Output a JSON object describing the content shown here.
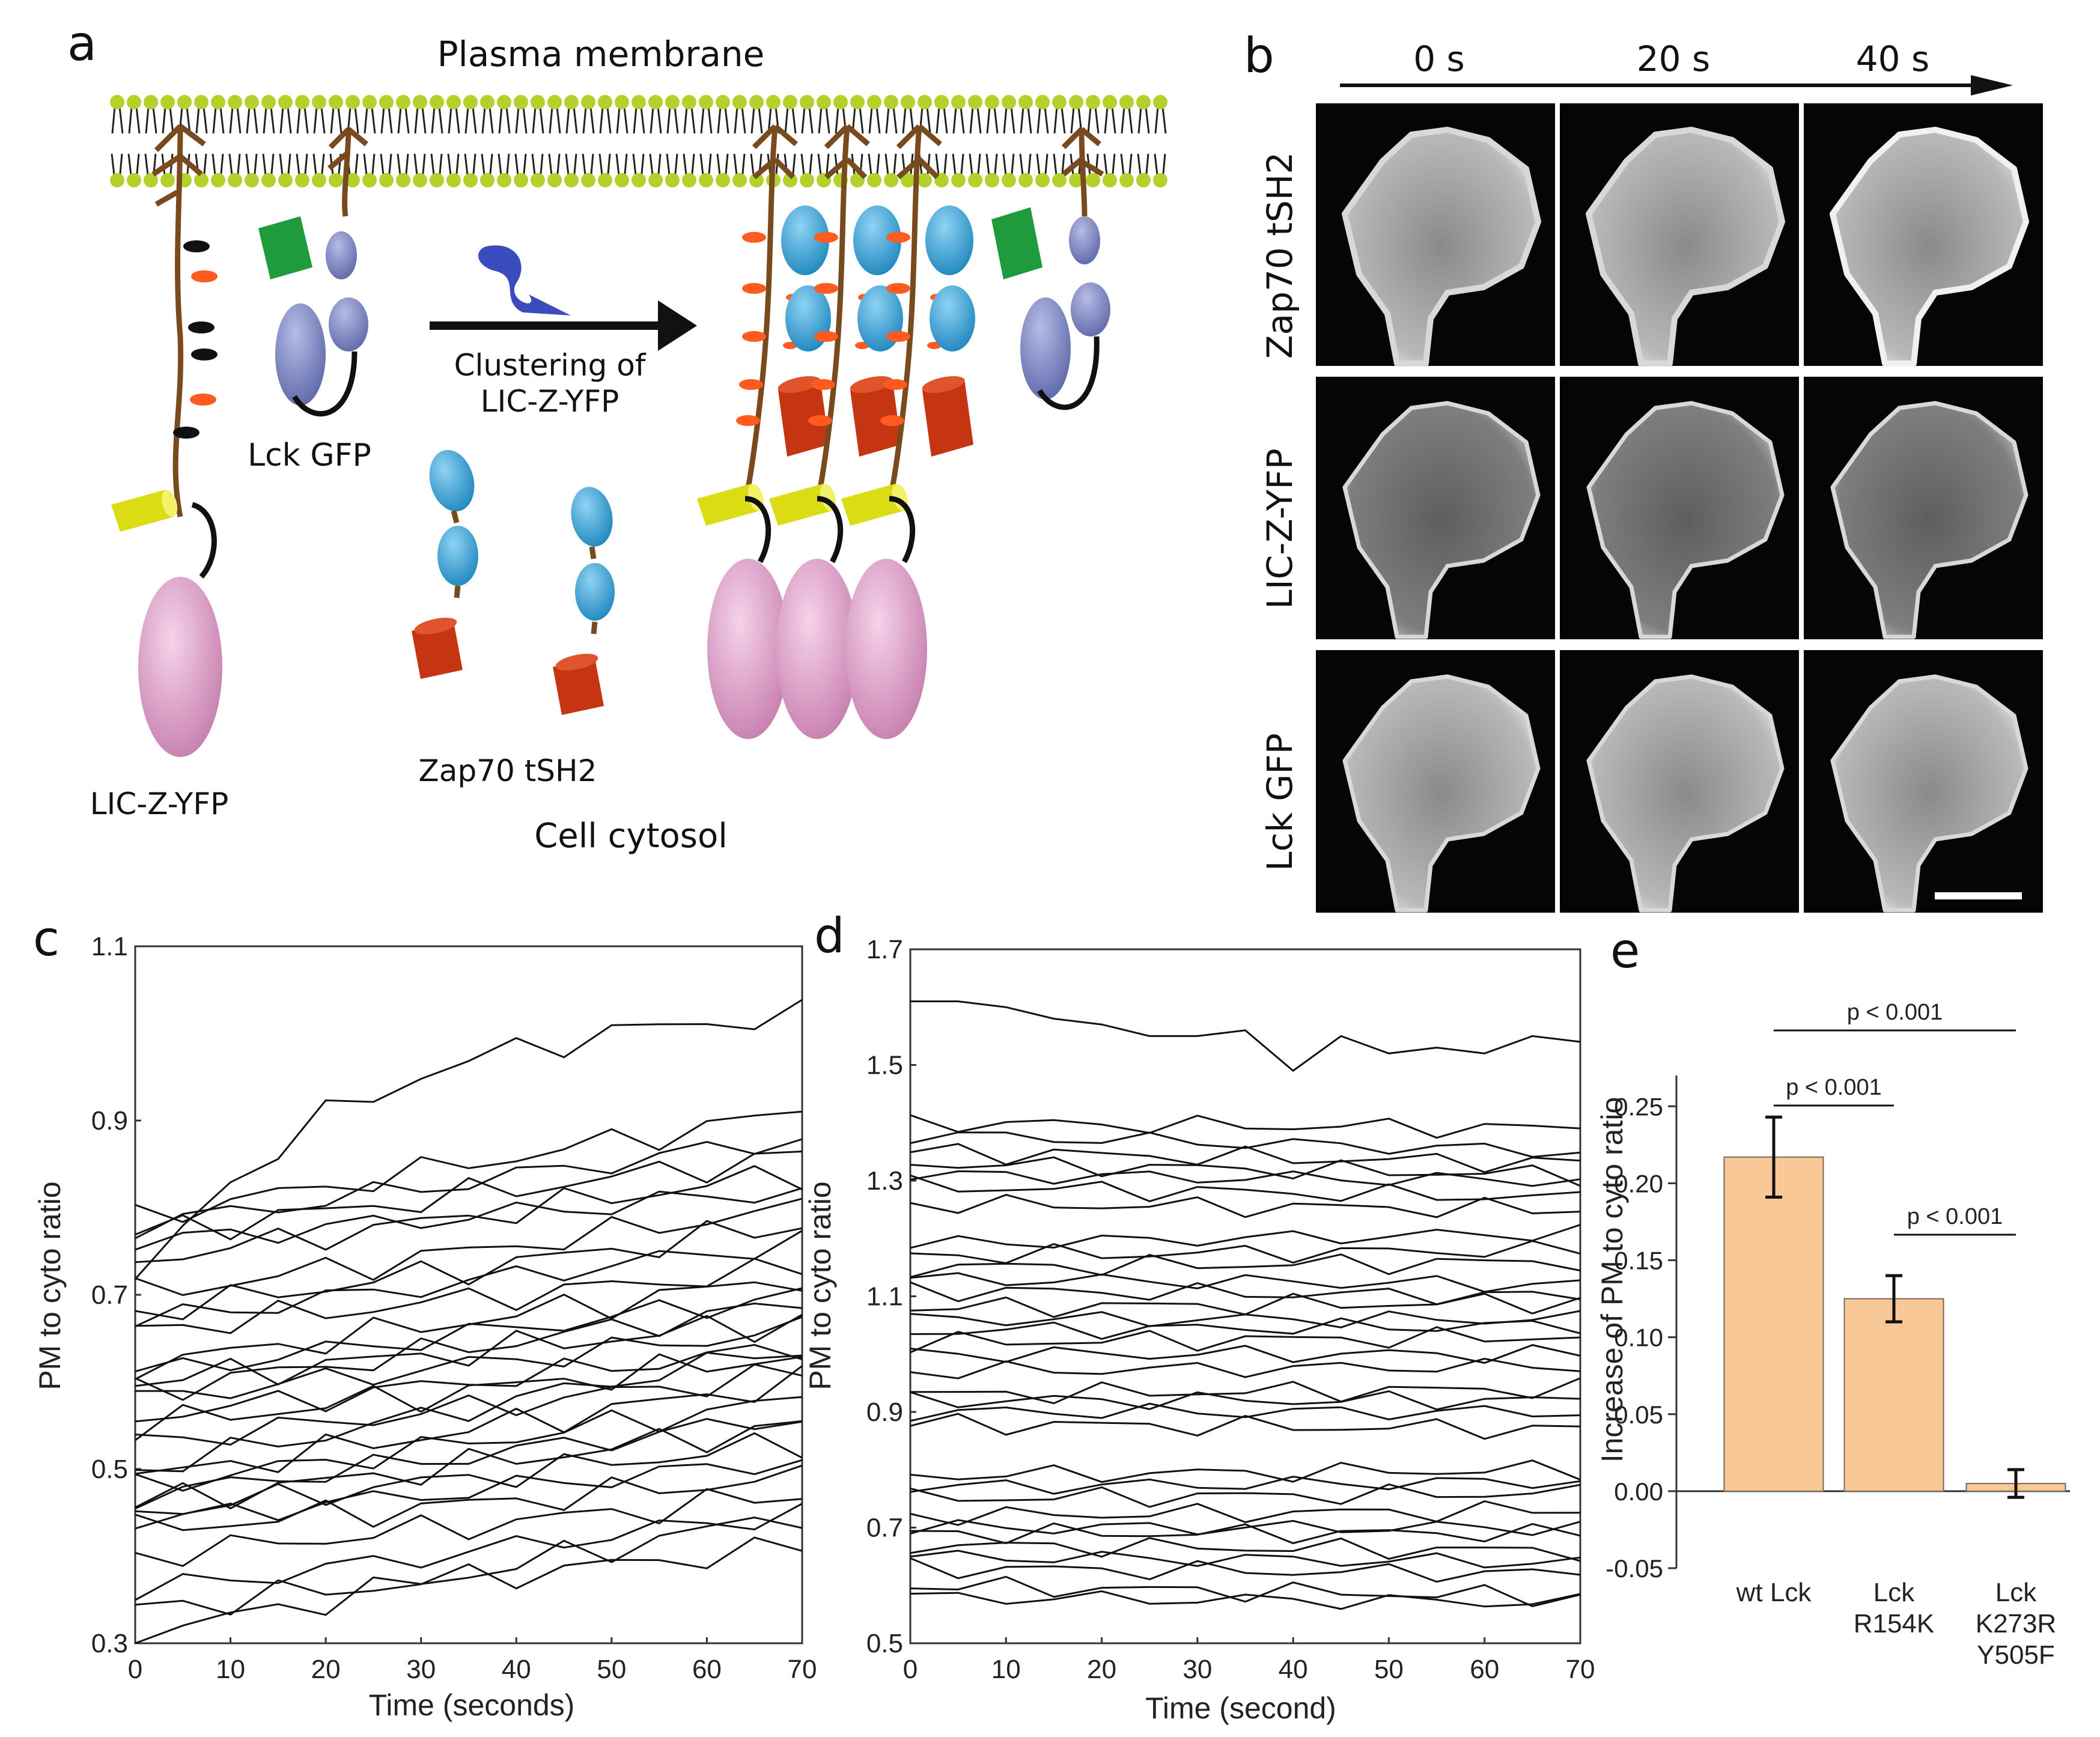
{
  "panels": {
    "a": "a",
    "b": "b",
    "c": "c",
    "d": "d",
    "e": "e"
  },
  "panel_a": {
    "membrane_label": "Plasma membrane",
    "arrow_label_line1": "Clustering of",
    "arrow_label_line2": "LIC-Z-YFP",
    "lck_label": "Lck GFP",
    "lic_label": "LIC-Z-YFP",
    "zap_label": "Zap70 tSH2",
    "cytosol_label": "Cell cytosol",
    "colors": {
      "head": "#b3d12a",
      "lipid_tail": "#222222",
      "receptor": "#7a4a1f",
      "yellow": "#e3e318",
      "pink": "#d79ac2",
      "blue": "#2f9fd5",
      "red": "#cf3a14",
      "green": "#1f9a3c",
      "lavender": "#7c86c4",
      "phospho": "#ff5a1f"
    }
  },
  "panel_b": {
    "time_labels": [
      "0 s",
      "20 s",
      "40 s"
    ],
    "row_labels": [
      "Zap70 tSH2",
      "LIC-Z-YFP",
      "Lck GFP"
    ]
  },
  "chart_data": [
    {
      "panel": "c",
      "type": "line",
      "xlabel": "Time (seconds)",
      "ylabel": "PM to cyto ratio",
      "xlim": [
        0,
        70
      ],
      "ylim": [
        0.3,
        1.1
      ],
      "xticks": [
        0,
        10,
        20,
        30,
        40,
        50,
        60,
        70
      ],
      "yticks": [
        0.3,
        0.5,
        0.7,
        0.9,
        1.1
      ],
      "xtick_labels": [
        "0",
        "10",
        "20",
        "30",
        "40",
        "50",
        "60",
        "70"
      ],
      "ytick_labels": [
        "0.3",
        "0.5",
        "0.7",
        "0.9",
        "1.1"
      ],
      "x": [
        0,
        5,
        10,
        15,
        20,
        25,
        30,
        35,
        40,
        45,
        50,
        55,
        60,
        65,
        70
      ],
      "series": [
        {
          "start": 0.71,
          "end": 1.02,
          "shape": "sat"
        },
        {
          "start": 0.79,
          "end": 0.91,
          "shape": "lin"
        },
        {
          "start": 0.78,
          "end": 0.88,
          "shape": "lin"
        },
        {
          "start": 0.77,
          "end": 0.86,
          "shape": "lin"
        },
        {
          "start": 0.74,
          "end": 0.84,
          "shape": "lin"
        },
        {
          "start": 0.76,
          "end": 0.82,
          "shape": "lin"
        },
        {
          "start": 0.7,
          "end": 0.8,
          "shape": "lin"
        },
        {
          "start": 0.68,
          "end": 0.78,
          "shape": "lin"
        },
        {
          "start": 0.67,
          "end": 0.76,
          "shape": "lin"
        },
        {
          "start": 0.66,
          "end": 0.73,
          "shape": "lin"
        },
        {
          "start": 0.62,
          "end": 0.72,
          "shape": "lin"
        },
        {
          "start": 0.61,
          "end": 0.7,
          "shape": "lin"
        },
        {
          "start": 0.59,
          "end": 0.69,
          "shape": "lin"
        },
        {
          "start": 0.6,
          "end": 0.67,
          "shape": "lin"
        },
        {
          "start": 0.58,
          "end": 0.66,
          "shape": "lin"
        },
        {
          "start": 0.56,
          "end": 0.64,
          "shape": "lin"
        },
        {
          "start": 0.55,
          "end": 0.63,
          "shape": "lin"
        },
        {
          "start": 0.53,
          "end": 0.61,
          "shape": "lin"
        },
        {
          "start": 0.5,
          "end": 0.64,
          "shape": "lin"
        },
        {
          "start": 0.49,
          "end": 0.6,
          "shape": "lin"
        },
        {
          "start": 0.48,
          "end": 0.58,
          "shape": "lin"
        },
        {
          "start": 0.47,
          "end": 0.56,
          "shape": "lin"
        },
        {
          "start": 0.46,
          "end": 0.55,
          "shape": "lin"
        },
        {
          "start": 0.45,
          "end": 0.53,
          "shape": "lin"
        },
        {
          "start": 0.44,
          "end": 0.51,
          "shape": "lin"
        },
        {
          "start": 0.43,
          "end": 0.49,
          "shape": "lin"
        },
        {
          "start": 0.4,
          "end": 0.47,
          "shape": "lin"
        },
        {
          "start": 0.36,
          "end": 0.45,
          "shape": "lin"
        },
        {
          "start": 0.34,
          "end": 0.41,
          "shape": "lin"
        },
        {
          "start": 0.31,
          "end": 0.45,
          "shape": "lin"
        }
      ]
    },
    {
      "panel": "d",
      "type": "line",
      "xlabel": "Time (second)",
      "ylabel": "PM to cyto ratio",
      "xlim": [
        0,
        70
      ],
      "ylim": [
        0.5,
        1.7
      ],
      "xticks": [
        0,
        10,
        20,
        30,
        40,
        50,
        60,
        70
      ],
      "yticks": [
        0.5,
        0.7,
        0.9,
        1.1,
        1.3,
        1.5,
        1.7
      ],
      "xtick_labels": [
        "0",
        "10",
        "20",
        "30",
        "40",
        "50",
        "60",
        "70"
      ],
      "ytick_labels": [
        "0.5",
        "0.7",
        "0.9",
        "1.1",
        "1.3",
        "1.5",
        "1.7"
      ],
      "x": [
        0,
        5,
        10,
        15,
        20,
        25,
        30,
        35,
        40,
        45,
        50,
        55,
        60,
        65,
        70
      ],
      "series": [
        {
          "values": [
            1.61,
            1.61,
            1.6,
            1.58,
            1.57,
            1.55,
            1.55,
            1.56,
            1.49,
            1.55,
            1.52,
            1.53,
            1.52,
            1.55,
            1.54
          ]
        },
        {
          "start": 1.4,
          "end": 1.39
        },
        {
          "start": 1.38,
          "end": 1.35
        },
        {
          "start": 1.35,
          "end": 1.33
        },
        {
          "start": 1.33,
          "end": 1.31
        },
        {
          "start": 1.31,
          "end": 1.3
        },
        {
          "start": 1.29,
          "end": 1.27
        },
        {
          "start": 1.26,
          "end": 1.25
        },
        {
          "start": 1.19,
          "end": 1.21
        },
        {
          "start": 1.17,
          "end": 1.18
        },
        {
          "start": 1.15,
          "end": 1.16
        },
        {
          "start": 1.13,
          "end": 1.12
        },
        {
          "start": 1.11,
          "end": 1.1
        },
        {
          "start": 1.08,
          "end": 1.09
        },
        {
          "start": 1.06,
          "end": 1.06
        },
        {
          "start": 1.04,
          "end": 1.05
        },
        {
          "start": 1.02,
          "end": 1.03
        },
        {
          "start": 1.0,
          "end": 1.0
        },
        {
          "start": 0.97,
          "end": 0.98
        },
        {
          "start": 0.93,
          "end": 0.94
        },
        {
          "start": 0.92,
          "end": 0.92
        },
        {
          "start": 0.9,
          "end": 0.9
        },
        {
          "start": 0.88,
          "end": 0.87
        },
        {
          "start": 0.79,
          "end": 0.8
        },
        {
          "start": 0.77,
          "end": 0.78
        },
        {
          "start": 0.75,
          "end": 0.76
        },
        {
          "start": 0.72,
          "end": 0.73
        },
        {
          "start": 0.7,
          "end": 0.7
        },
        {
          "start": 0.69,
          "end": 0.69
        },
        {
          "start": 0.67,
          "end": 0.66
        },
        {
          "start": 0.65,
          "end": 0.64
        },
        {
          "start": 0.63,
          "end": 0.62
        },
        {
          "start": 0.6,
          "end": 0.58
        },
        {
          "start": 0.58,
          "end": 0.57
        }
      ]
    },
    {
      "panel": "e",
      "type": "bar",
      "ylabel": "Increase of PM to cyto ratio",
      "categories": [
        [
          "wt Lck"
        ],
        [
          "Lck",
          "R154K"
        ],
        [
          "Lck",
          "K273R",
          "Y505F"
        ]
      ],
      "values": [
        0.217,
        0.125,
        0.005
      ],
      "errors": [
        0.026,
        0.015,
        0.009
      ],
      "ylim": [
        -0.05,
        0.27
      ],
      "yticks": [
        -0.05,
        0.0,
        0.05,
        0.1,
        0.15,
        0.2,
        0.25
      ],
      "ytick_labels": [
        "-0.05",
        "0.00",
        "0.05",
        "0.10",
        "0.15",
        "0.20",
        "0.25"
      ],
      "bar_color": "#f8c896",
      "significance": [
        {
          "from": 0,
          "to": 2,
          "label": "p < 0.001"
        },
        {
          "from": 0,
          "to": 1,
          "label": "p < 0.001"
        },
        {
          "from": 1,
          "to": 2,
          "label": "p < 0.001"
        }
      ]
    }
  ]
}
